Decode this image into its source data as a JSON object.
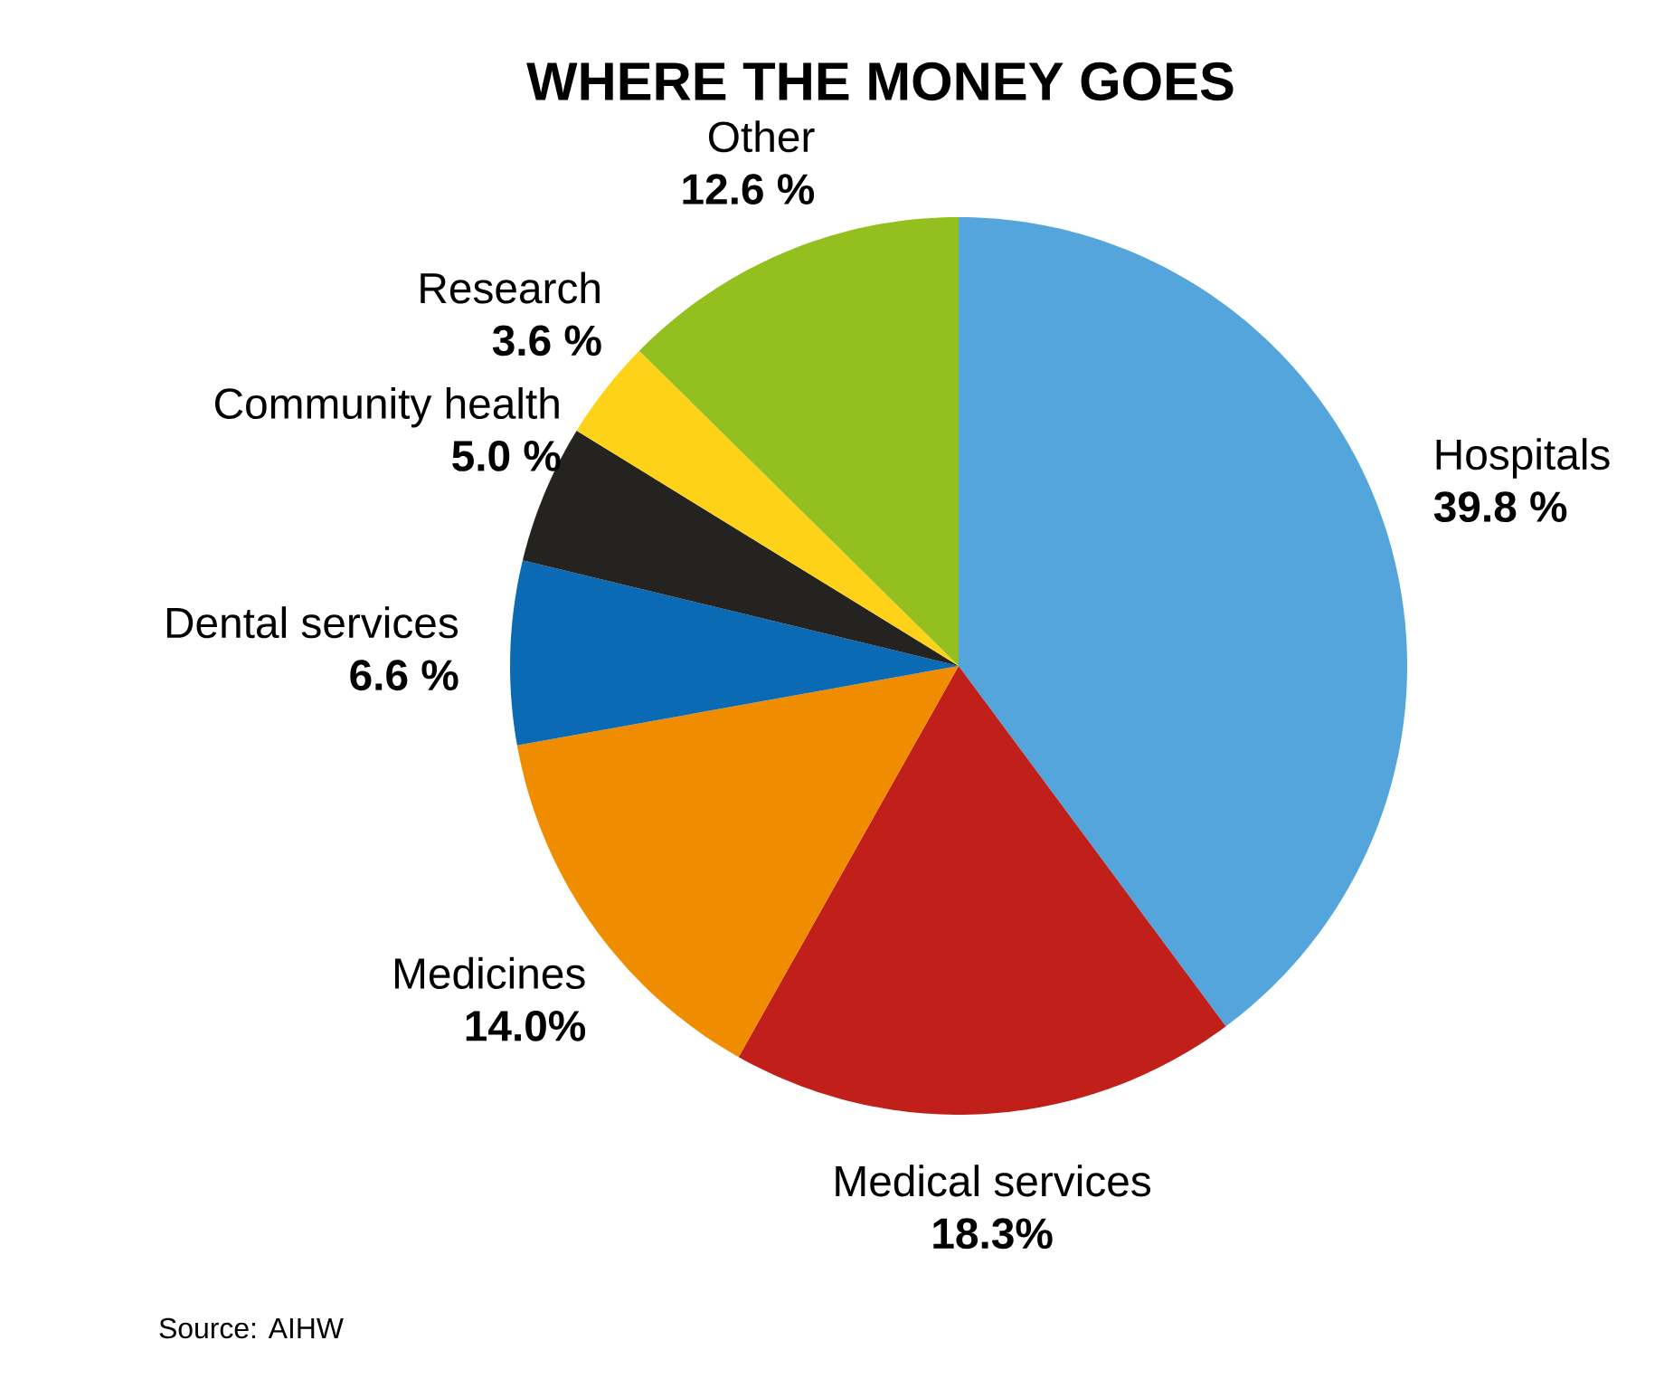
{
  "chart_data": {
    "type": "pie",
    "title": "WHERE THE MONEY GOES",
    "categories": [
      "Hospitals",
      "Medical services",
      "Medicines",
      "Dental services",
      "Community health",
      "Research",
      "Other"
    ],
    "values": [
      39.8,
      18.3,
      14.0,
      6.6,
      5.0,
      3.6,
      12.6
    ],
    "colors": [
      "#55a5dd",
      "#c01f1a",
      "#f08c00",
      "#0a6ab4",
      "#25231f",
      "#ffd21a",
      "#93c01f"
    ],
    "value_labels": [
      "39.8 %",
      "18.3%",
      "14.0%",
      "6.6 %",
      "5.0 %",
      "3.6 %",
      "12.6 %"
    ],
    "annotations": [
      "Source: AIHW"
    ]
  }
}
